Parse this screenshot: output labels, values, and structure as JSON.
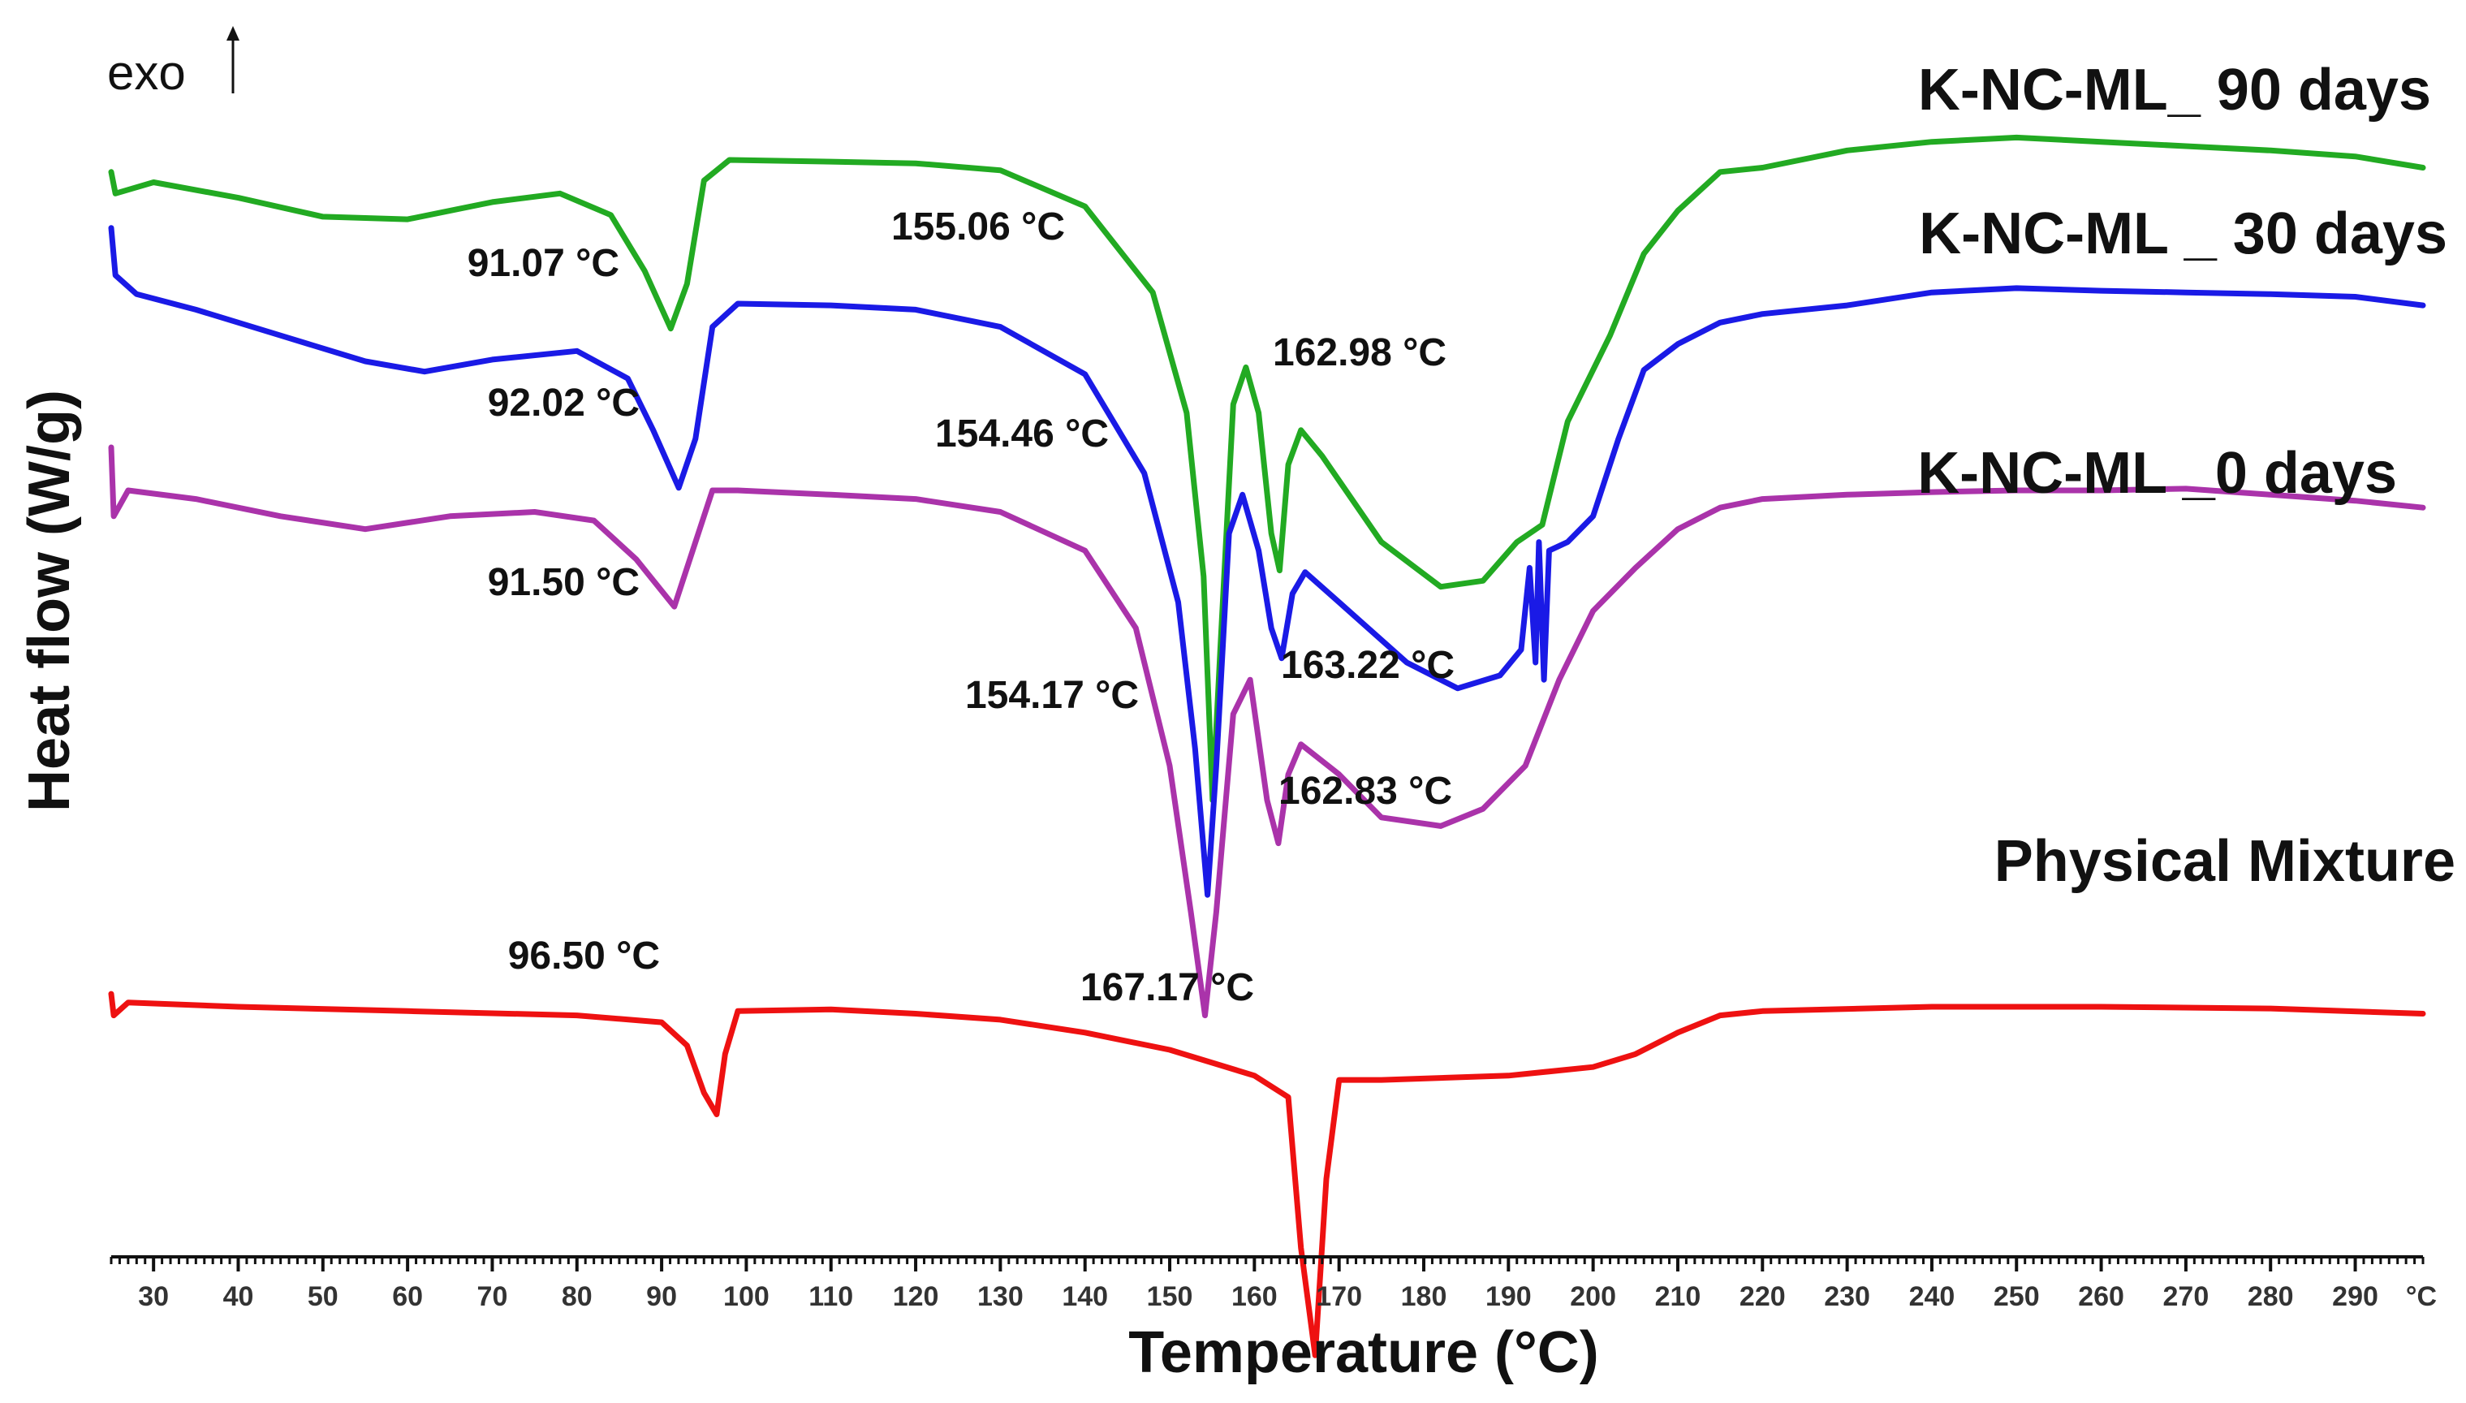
{
  "chart_data": {
    "type": "line",
    "title": "",
    "xlabel": "Temperature (°C)",
    "ylabel": "Heat flow (W/g)",
    "exo_label": "exo",
    "x_unit_label": "°C",
    "xlim": [
      25,
      298
    ],
    "x_ticks": [
      30,
      40,
      50,
      60,
      70,
      80,
      90,
      100,
      110,
      120,
      130,
      140,
      150,
      160,
      170,
      180,
      190,
      200,
      210,
      220,
      230,
      240,
      250,
      260,
      270,
      280,
      290
    ],
    "y_ticks_shown": false,
    "series": [
      {
        "name": "K-NC-ML_ 90 days",
        "color": "#22aa22",
        "points": [
          [
            25,
            -0.3
          ],
          [
            25.5,
            -0.55
          ],
          [
            30,
            -0.42
          ],
          [
            40,
            -0.6
          ],
          [
            50,
            -0.82
          ],
          [
            60,
            -0.85
          ],
          [
            70,
            -0.65
          ],
          [
            78,
            -0.55
          ],
          [
            84,
            -0.8
          ],
          [
            88,
            -1.45
          ],
          [
            91.07,
            -2.12
          ],
          [
            93,
            -1.6
          ],
          [
            95,
            -0.4
          ],
          [
            98,
            -0.16
          ],
          [
            110,
            -0.18
          ],
          [
            120,
            -0.2
          ],
          [
            130,
            -0.28
          ],
          [
            140,
            -0.7
          ],
          [
            148,
            -1.7
          ],
          [
            152,
            -3.1
          ],
          [
            154,
            -5.0
          ],
          [
            155.06,
            -7.6
          ],
          [
            156,
            -5.8
          ],
          [
            157.5,
            -3.0
          ],
          [
            159,
            -2.57
          ],
          [
            160.5,
            -3.1
          ],
          [
            162,
            -4.5
          ],
          [
            162.98,
            -4.93
          ],
          [
            164,
            -3.7
          ],
          [
            165.5,
            -3.3
          ],
          [
            168,
            -3.6
          ],
          [
            175,
            -4.6
          ],
          [
            182,
            -5.12
          ],
          [
            187,
            -5.05
          ],
          [
            191,
            -4.6
          ],
          [
            194,
            -4.4
          ],
          [
            197,
            -3.2
          ],
          [
            202,
            -2.2
          ],
          [
            206,
            -1.25
          ],
          [
            210,
            -0.75
          ],
          [
            215,
            -0.3
          ],
          [
            220,
            -0.25
          ],
          [
            230,
            -0.05
          ],
          [
            240,
            0.05
          ],
          [
            250,
            0.1
          ],
          [
            260,
            0.05
          ],
          [
            270,
            0.0
          ],
          [
            280,
            -0.05
          ],
          [
            290,
            -0.12
          ],
          [
            298,
            -0.25
          ]
        ]
      },
      {
        "name": "K-NC-ML _ 30 days",
        "color": "#1a1ae6",
        "points": [
          [
            25,
            -0.95
          ],
          [
            25.5,
            -1.5
          ],
          [
            28,
            -1.72
          ],
          [
            35,
            -1.9
          ],
          [
            45,
            -2.2
          ],
          [
            55,
            -2.5
          ],
          [
            62,
            -2.62
          ],
          [
            70,
            -2.48
          ],
          [
            80,
            -2.38
          ],
          [
            86,
            -2.7
          ],
          [
            89,
            -3.3
          ],
          [
            92.02,
            -3.97
          ],
          [
            94,
            -3.4
          ],
          [
            96,
            -2.1
          ],
          [
            99,
            -1.83
          ],
          [
            110,
            -1.85
          ],
          [
            120,
            -1.9
          ],
          [
            130,
            -2.1
          ],
          [
            140,
            -2.65
          ],
          [
            147,
            -3.8
          ],
          [
            151,
            -5.3
          ],
          [
            153,
            -7.0
          ],
          [
            154.46,
            -8.7
          ],
          [
            155.5,
            -7.2
          ],
          [
            157,
            -4.5
          ],
          [
            158.6,
            -4.05
          ],
          [
            160.5,
            -4.7
          ],
          [
            162,
            -5.6
          ],
          [
            163.22,
            -5.95
          ],
          [
            164.5,
            -5.2
          ],
          [
            166,
            -4.95
          ],
          [
            170,
            -5.3
          ],
          [
            178,
            -6.0
          ],
          [
            184,
            -6.3
          ],
          [
            189,
            -6.15
          ],
          [
            191.5,
            -5.85
          ],
          [
            192.5,
            -4.9
          ],
          [
            193.2,
            -6.0
          ],
          [
            193.6,
            -4.6
          ],
          [
            194.2,
            -6.2
          ],
          [
            194.8,
            -4.7
          ],
          [
            197,
            -4.6
          ],
          [
            200,
            -4.3
          ],
          [
            203,
            -3.4
          ],
          [
            206,
            -2.6
          ],
          [
            210,
            -2.3
          ],
          [
            215,
            -2.05
          ],
          [
            220,
            -1.95
          ],
          [
            230,
            -1.85
          ],
          [
            240,
            -1.7
          ],
          [
            250,
            -1.65
          ],
          [
            260,
            -1.68
          ],
          [
            270,
            -1.7
          ],
          [
            280,
            -1.72
          ],
          [
            290,
            -1.75
          ],
          [
            298,
            -1.85
          ]
        ]
      },
      {
        "name": "K-NC-ML _0 days",
        "color": "#aa33aa",
        "points": [
          [
            25,
            -3.5
          ],
          [
            25.3,
            -4.3
          ],
          [
            27,
            -4.0
          ],
          [
            35,
            -4.1
          ],
          [
            45,
            -4.3
          ],
          [
            55,
            -4.45
          ],
          [
            65,
            -4.3
          ],
          [
            75,
            -4.25
          ],
          [
            82,
            -4.35
          ],
          [
            87,
            -4.8
          ],
          [
            91.5,
            -5.35
          ],
          [
            94,
            -4.6
          ],
          [
            96,
            -4.0
          ],
          [
            99,
            -4.0
          ],
          [
            110,
            -4.05
          ],
          [
            120,
            -4.1
          ],
          [
            130,
            -4.25
          ],
          [
            140,
            -4.7
          ],
          [
            146,
            -5.6
          ],
          [
            150,
            -7.2
          ],
          [
            152.5,
            -8.9
          ],
          [
            154.17,
            -10.1
          ],
          [
            155.5,
            -8.9
          ],
          [
            157.5,
            -6.6
          ],
          [
            159.5,
            -6.2
          ],
          [
            161.5,
            -7.6
          ],
          [
            162.83,
            -8.1
          ],
          [
            164,
            -7.3
          ],
          [
            165.5,
            -6.95
          ],
          [
            170,
            -7.3
          ],
          [
            175,
            -7.8
          ],
          [
            182,
            -7.9
          ],
          [
            187,
            -7.7
          ],
          [
            192,
            -7.2
          ],
          [
            196,
            -6.2
          ],
          [
            200,
            -5.4
          ],
          [
            205,
            -4.9
          ],
          [
            210,
            -4.45
          ],
          [
            215,
            -4.2
          ],
          [
            220,
            -4.1
          ],
          [
            230,
            -4.05
          ],
          [
            240,
            -4.02
          ],
          [
            250,
            -4.0
          ],
          [
            260,
            -4.0
          ],
          [
            270,
            -3.98
          ],
          [
            280,
            -4.05
          ],
          [
            290,
            -4.12
          ],
          [
            298,
            -4.2
          ]
        ]
      },
      {
        "name": "Physical Mixture",
        "color": "#ee1111",
        "points": [
          [
            25,
            -9.85
          ],
          [
            25.3,
            -10.1
          ],
          [
            27,
            -9.95
          ],
          [
            40,
            -10.0
          ],
          [
            60,
            -10.05
          ],
          [
            80,
            -10.1
          ],
          [
            90,
            -10.18
          ],
          [
            93,
            -10.45
          ],
          [
            95,
            -11.0
          ],
          [
            96.5,
            -11.25
          ],
          [
            97.5,
            -10.55
          ],
          [
            99,
            -10.05
          ],
          [
            110,
            -10.03
          ],
          [
            120,
            -10.08
          ],
          [
            130,
            -10.15
          ],
          [
            140,
            -10.3
          ],
          [
            150,
            -10.5
          ],
          [
            160,
            -10.8
          ],
          [
            164,
            -11.05
          ],
          [
            165.5,
            -12.8
          ],
          [
            167.17,
            -14.05
          ],
          [
            168.5,
            -12.0
          ],
          [
            170,
            -10.85
          ],
          [
            175,
            -10.85
          ],
          [
            190,
            -10.8
          ],
          [
            200,
            -10.7
          ],
          [
            205,
            -10.55
          ],
          [
            210,
            -10.3
          ],
          [
            215,
            -10.1
          ],
          [
            220,
            -10.05
          ],
          [
            240,
            -10.0
          ],
          [
            260,
            -10.0
          ],
          [
            280,
            -10.02
          ],
          [
            298,
            -10.08
          ]
        ]
      }
    ],
    "peak_annotations": [
      {
        "text": "91.07 °C",
        "series": "K-NC-ML_ 90 days"
      },
      {
        "text": "155.06 °C",
        "series": "K-NC-ML_ 90 days"
      },
      {
        "text": "162.98 °C",
        "series": "K-NC-ML_ 90 days"
      },
      {
        "text": "92.02 °C",
        "series": "K-NC-ML _ 30 days"
      },
      {
        "text": "154.46 °C",
        "series": "K-NC-ML _ 30 days"
      },
      {
        "text": "163.22 °C",
        "series": "K-NC-ML _ 30 days"
      },
      {
        "text": "91.50 °C",
        "series": "K-NC-ML _0 days"
      },
      {
        "text": "154.17 °C",
        "series": "K-NC-ML _0 days"
      },
      {
        "text": "162.83 °C",
        "series": "K-NC-ML _0 days"
      },
      {
        "text": "96.50 °C",
        "series": "Physical Mixture"
      },
      {
        "text": "167.17 °C",
        "series": "Physical Mixture"
      }
    ]
  }
}
